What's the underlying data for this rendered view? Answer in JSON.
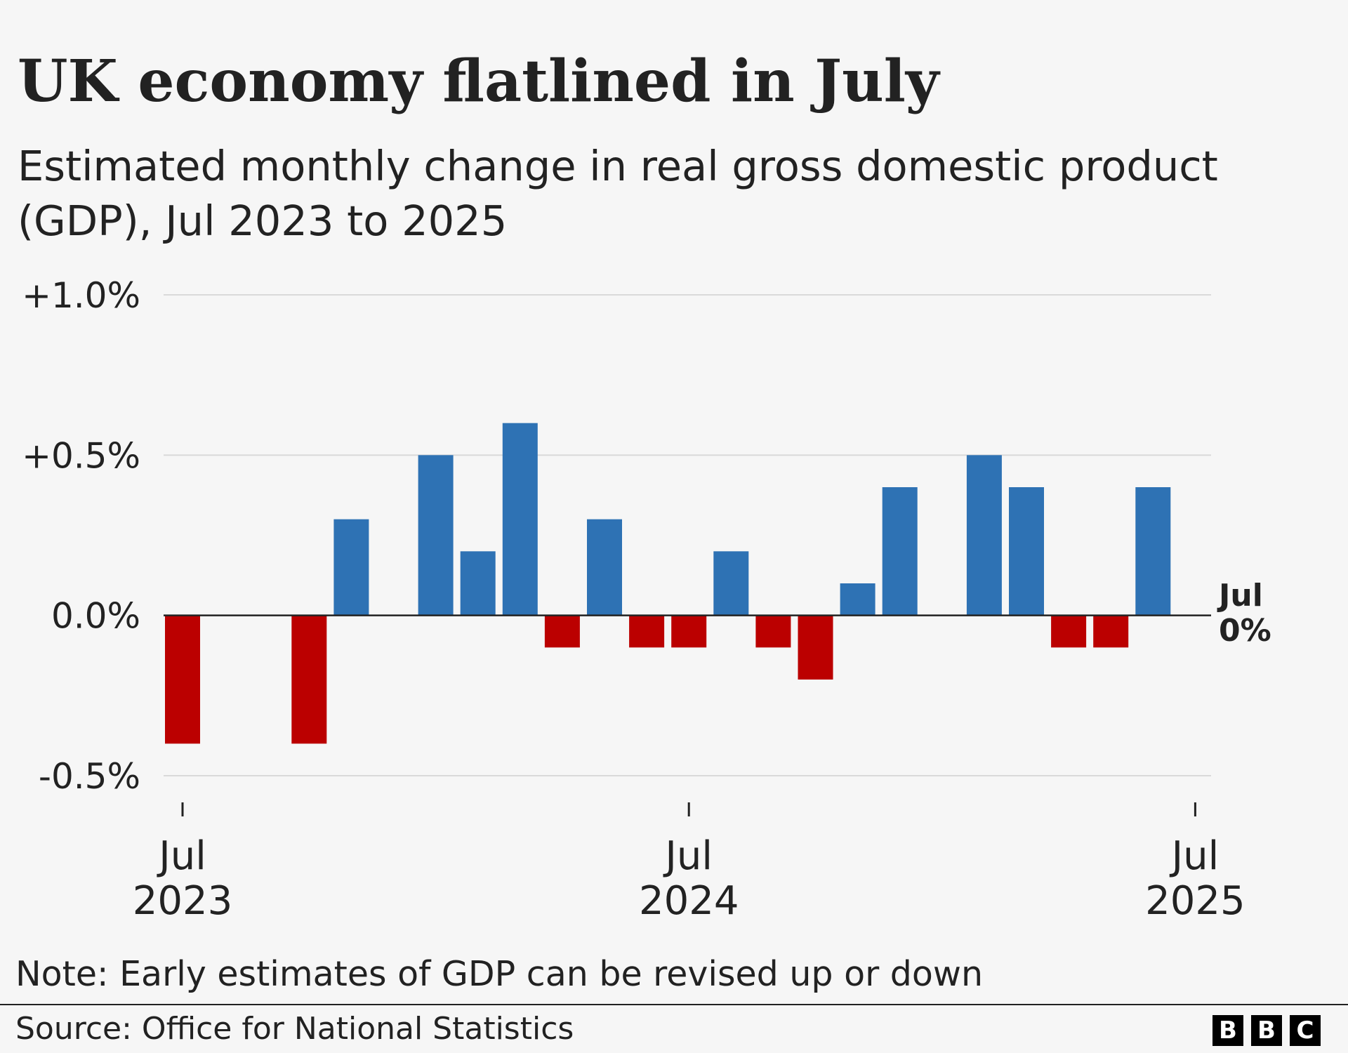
{
  "title": "UK economy flatlined in July",
  "subtitle": "Estimated monthly change in real gross domestic product (GDP), Jul 2023 to 2025",
  "note": "Note: Early estimates of GDP can be revised up or down",
  "source": "Source: Office for National Statistics",
  "logo": {
    "letters": [
      "B",
      "B",
      "C"
    ]
  },
  "colors": {
    "positive": "#2e72b4",
    "negative": "#bb0000",
    "grid": "#d9d9d9",
    "zero_line": "#222222",
    "text": "#222222",
    "background": "#f6f6f6"
  },
  "chart_data": {
    "type": "bar",
    "title": "UK economy flatlined in July",
    "xlabel": "",
    "ylabel": "",
    "ylim": [
      -0.5,
      1.0
    ],
    "grid": true,
    "y_ticks": [
      {
        "value": 1.0,
        "label": "+1.0%"
      },
      {
        "value": 0.5,
        "label": "+0.5%"
      },
      {
        "value": 0.0,
        "label": "0.0%"
      },
      {
        "value": -0.5,
        "label": "-0.5%"
      }
    ],
    "x_ticks": [
      {
        "index": 0,
        "month": "Jul",
        "year": "2023"
      },
      {
        "index": 12,
        "month": "Jul",
        "year": "2024"
      },
      {
        "index": 24,
        "month": "Jul",
        "year": "2025"
      }
    ],
    "categories": [
      "Jul 2023",
      "Aug 2023",
      "Sep 2023",
      "Oct 2023",
      "Nov 2023",
      "Dec 2023",
      "Jan 2024",
      "Feb 2024",
      "Mar 2024",
      "Apr 2024",
      "May 2024",
      "Jun 2024",
      "Jul 2024",
      "Aug 2024",
      "Sep 2024",
      "Oct 2024",
      "Nov 2024",
      "Dec 2024",
      "Jan 2025",
      "Feb 2025",
      "Mar 2025",
      "Apr 2025",
      "May 2025",
      "Jun 2025",
      "Jul 2025"
    ],
    "values": [
      -0.4,
      0.0,
      0.0,
      -0.4,
      0.3,
      0.0,
      0.5,
      0.2,
      0.6,
      -0.1,
      0.3,
      -0.1,
      -0.1,
      0.2,
      -0.1,
      -0.2,
      0.1,
      0.4,
      0.0,
      0.5,
      0.4,
      -0.1,
      -0.1,
      0.4,
      0.0
    ],
    "end_label": {
      "month": "Jul",
      "value": "0%"
    }
  }
}
